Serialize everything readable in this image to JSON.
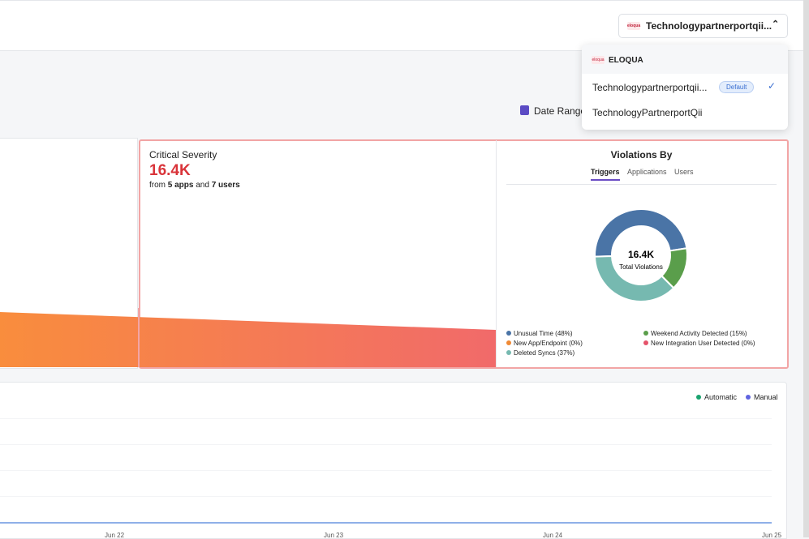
{
  "header": {
    "account_selector": "Technologypartnerportqii..."
  },
  "dropdown": {
    "group": "ELOQUA",
    "items": [
      {
        "label": "Technologypartnerportqii...",
        "badge": "Default"
      },
      {
        "label": "TechnologyPartnerportQii"
      }
    ]
  },
  "date_range_label": "Date Range:",
  "critical": {
    "title": "Critical Severity",
    "value": "16.4K",
    "sub": [
      "from",
      "5 apps",
      "and",
      "7 users"
    ]
  },
  "violations": {
    "title": "Violations By",
    "tabs": [
      "Triggers",
      "Applications",
      "Users"
    ],
    "center_value": "16.4K",
    "center_label": "Total Violations"
  },
  "chart_data": {
    "type": "pie",
    "categories": [
      "Unusual Time",
      "Weekend Activity Detected",
      "New App/Endpoint",
      "New Integration User Detected",
      "Deleted Syncs"
    ],
    "values": [
      48,
      15,
      0,
      0,
      37
    ],
    "value_labels": [
      "(48%)",
      "(15%)",
      "(0%)",
      "(0%)",
      "(37%)"
    ],
    "colors": [
      "#4a74a6",
      "#5a9e4b",
      "#f08a35",
      "#e5536a",
      "#76b9b0"
    ]
  },
  "activity": {
    "legend": [
      "Automatic",
      "Manual"
    ],
    "legend_colors": [
      "#1aa36f",
      "#6064e0"
    ],
    "x_labels": [
      "Jun 22",
      "Jun 23",
      "Jun 24",
      "Jun 25"
    ]
  }
}
